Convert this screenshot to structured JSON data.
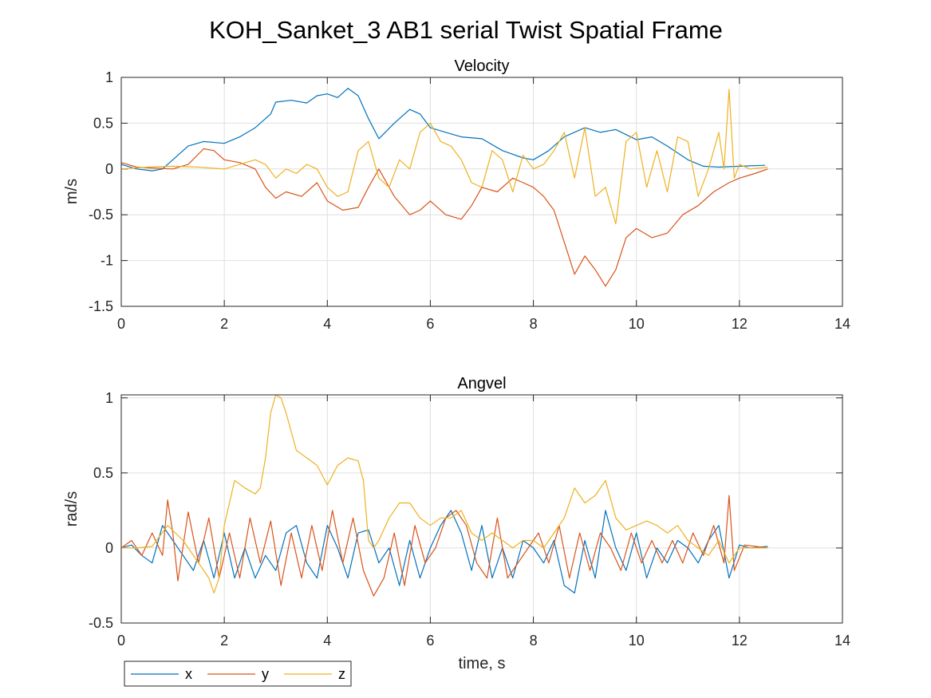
{
  "figure": {
    "title": "KOH_Sanket_3 AB1 serial Twist Spatial Frame"
  },
  "legend": {
    "placement": "bottom-left",
    "entries": [
      "x",
      "y",
      "z"
    ]
  },
  "chart_data": [
    {
      "type": "line",
      "title": "Velocity",
      "xlabel": "",
      "ylabel": "m/s",
      "xlim": [
        0,
        14
      ],
      "ylim": [
        -1.5,
        1
      ],
      "xticks": [
        "0",
        "2",
        "4",
        "6",
        "8",
        "10",
        "12",
        "14"
      ],
      "yticks": [
        "-1.5",
        "-1",
        "-0.5",
        "0",
        "0.5",
        "1"
      ],
      "grid": true,
      "series": [
        {
          "name": "x",
          "color": "#0072BD",
          "x": [
            0,
            0.3,
            0.6,
            0.8,
            1.0,
            1.3,
            1.6,
            2.0,
            2.3,
            2.6,
            2.9,
            3.0,
            3.3,
            3.6,
            3.8,
            4.0,
            4.2,
            4.4,
            4.6,
            4.8,
            5.0,
            5.3,
            5.6,
            5.8,
            6.0,
            6.3,
            6.6,
            7.0,
            7.4,
            7.8,
            8.0,
            8.3,
            8.6,
            9.0,
            9.3,
            9.6,
            10.0,
            10.3,
            10.6,
            11.0,
            11.3,
            11.6,
            12.0,
            12.5
          ],
          "y": [
            0.05,
            0.0,
            -0.02,
            0.0,
            0.1,
            0.25,
            0.3,
            0.28,
            0.35,
            0.45,
            0.6,
            0.73,
            0.75,
            0.72,
            0.8,
            0.82,
            0.78,
            0.88,
            0.8,
            0.55,
            0.33,
            0.5,
            0.65,
            0.6,
            0.45,
            0.4,
            0.35,
            0.33,
            0.2,
            0.12,
            0.1,
            0.2,
            0.35,
            0.45,
            0.4,
            0.43,
            0.32,
            0.35,
            0.25,
            0.1,
            0.03,
            0.02,
            0.03,
            0.04
          ]
        },
        {
          "name": "y",
          "color": "#D95319",
          "x": [
            0,
            0.3,
            0.6,
            1.0,
            1.3,
            1.6,
            1.8,
            2.0,
            2.3,
            2.6,
            2.8,
            3.0,
            3.2,
            3.5,
            3.8,
            4.0,
            4.3,
            4.6,
            4.8,
            5.0,
            5.3,
            5.6,
            5.8,
            6.0,
            6.3,
            6.6,
            6.8,
            7.0,
            7.3,
            7.6,
            7.8,
            8.0,
            8.2,
            8.4,
            8.6,
            8.8,
            9.0,
            9.2,
            9.4,
            9.6,
            9.8,
            10.0,
            10.3,
            10.6,
            10.9,
            11.2,
            11.5,
            11.8,
            12.0,
            12.3,
            12.55
          ],
          "y": [
            0.07,
            0.02,
            0.01,
            0.0,
            0.05,
            0.22,
            0.2,
            0.1,
            0.07,
            0.0,
            -0.2,
            -0.32,
            -0.25,
            -0.3,
            -0.15,
            -0.35,
            -0.45,
            -0.42,
            -0.2,
            0.0,
            -0.3,
            -0.5,
            -0.45,
            -0.35,
            -0.5,
            -0.55,
            -0.4,
            -0.2,
            -0.25,
            -0.1,
            -0.15,
            -0.2,
            -0.3,
            -0.45,
            -0.8,
            -1.15,
            -0.95,
            -1.1,
            -1.28,
            -1.1,
            -0.75,
            -0.65,
            -0.75,
            -0.7,
            -0.5,
            -0.4,
            -0.25,
            -0.15,
            -0.1,
            -0.05,
            0.0
          ]
        },
        {
          "name": "z",
          "color": "#EDB120",
          "x": [
            0,
            0.5,
            1.0,
            1.5,
            2.0,
            2.3,
            2.6,
            2.8,
            3.0,
            3.2,
            3.4,
            3.6,
            3.8,
            4.0,
            4.2,
            4.4,
            4.6,
            4.8,
            5.0,
            5.2,
            5.4,
            5.6,
            5.8,
            6.0,
            6.2,
            6.4,
            6.6,
            6.8,
            7.0,
            7.2,
            7.4,
            7.6,
            7.8,
            8.0,
            8.2,
            8.4,
            8.6,
            8.8,
            9.0,
            9.2,
            9.4,
            9.6,
            9.8,
            10.0,
            10.2,
            10.4,
            10.6,
            10.8,
            11.0,
            11.2,
            11.4,
            11.6,
            11.7,
            11.8,
            11.9,
            12.0,
            12.2,
            12.55
          ],
          "y": [
            0.0,
            0.02,
            0.03,
            0.02,
            0.0,
            0.05,
            0.1,
            0.05,
            -0.1,
            0.0,
            -0.05,
            0.05,
            0.0,
            -0.2,
            -0.3,
            -0.25,
            0.2,
            0.3,
            -0.1,
            -0.2,
            0.1,
            0.0,
            0.4,
            0.5,
            0.3,
            0.25,
            0.1,
            -0.15,
            -0.2,
            0.2,
            0.1,
            -0.25,
            0.15,
            0.0,
            0.05,
            0.2,
            0.4,
            -0.1,
            0.45,
            -0.3,
            -0.2,
            -0.6,
            0.3,
            0.4,
            -0.2,
            0.2,
            -0.25,
            0.35,
            0.3,
            -0.3,
            0.0,
            0.4,
            0.0,
            0.87,
            -0.1,
            0.05,
            0.0,
            0.02
          ]
        }
      ]
    },
    {
      "type": "line",
      "title": "Angvel",
      "xlabel": "time, s",
      "ylabel": "rad/s",
      "xlim": [
        0,
        14
      ],
      "ylim": [
        -0.5,
        1.02
      ],
      "xticks": [
        "0",
        "2",
        "4",
        "6",
        "8",
        "10",
        "12",
        "14"
      ],
      "yticks": [
        "-0.5",
        "0",
        "0.5",
        "1"
      ],
      "grid": true,
      "series": [
        {
          "name": "x",
          "color": "#0072BD",
          "x": [
            0,
            0.2,
            0.4,
            0.6,
            0.8,
            1.0,
            1.2,
            1.4,
            1.6,
            1.8,
            2.0,
            2.2,
            2.4,
            2.6,
            2.8,
            3.0,
            3.2,
            3.4,
            3.6,
            3.8,
            4.0,
            4.2,
            4.4,
            4.6,
            4.8,
            5.0,
            5.2,
            5.4,
            5.6,
            5.8,
            6.0,
            6.2,
            6.4,
            6.6,
            6.8,
            7.0,
            7.2,
            7.4,
            7.6,
            7.8,
            8.0,
            8.2,
            8.4,
            8.6,
            8.8,
            9.0,
            9.2,
            9.4,
            9.6,
            9.8,
            10.0,
            10.2,
            10.4,
            10.6,
            10.8,
            11.0,
            11.2,
            11.4,
            11.6,
            11.8,
            12.0,
            12.2,
            12.55
          ],
          "y": [
            0.0,
            0.02,
            -0.05,
            -0.1,
            0.15,
            0.05,
            -0.05,
            -0.15,
            0.05,
            -0.2,
            0.1,
            -0.2,
            0.0,
            -0.2,
            -0.05,
            -0.15,
            0.1,
            0.15,
            -0.1,
            -0.2,
            0.15,
            0.0,
            -0.2,
            0.1,
            0.12,
            -0.1,
            0.0,
            -0.25,
            0.05,
            -0.2,
            0.0,
            0.15,
            0.25,
            0.1,
            -0.15,
            0.15,
            -0.2,
            0.0,
            -0.2,
            0.05,
            0.0,
            -0.1,
            0.05,
            -0.25,
            -0.3,
            0.05,
            -0.2,
            0.25,
            0.0,
            -0.15,
            0.1,
            -0.2,
            0.0,
            -0.1,
            0.05,
            0.0,
            -0.1,
            0.05,
            0.15,
            -0.2,
            0.02,
            0.0,
            0.01
          ]
        },
        {
          "name": "y",
          "color": "#D95319",
          "x": [
            0,
            0.2,
            0.4,
            0.6,
            0.8,
            0.9,
            1.0,
            1.1,
            1.3,
            1.5,
            1.7,
            1.9,
            2.1,
            2.3,
            2.5,
            2.7,
            2.9,
            3.1,
            3.3,
            3.5,
            3.7,
            3.9,
            4.1,
            4.3,
            4.5,
            4.7,
            4.9,
            5.1,
            5.3,
            5.5,
            5.7,
            5.9,
            6.1,
            6.3,
            6.5,
            6.7,
            6.9,
            7.1,
            7.3,
            7.5,
            7.7,
            7.9,
            8.1,
            8.3,
            8.5,
            8.7,
            8.9,
            9.1,
            9.3,
            9.5,
            9.7,
            9.9,
            10.1,
            10.3,
            10.5,
            10.7,
            10.9,
            11.1,
            11.3,
            11.5,
            11.7,
            11.8,
            11.9,
            12.1,
            12.55
          ],
          "y": [
            0.0,
            0.05,
            -0.05,
            0.1,
            -0.05,
            0.32,
            0.1,
            -0.22,
            0.24,
            -0.1,
            0.2,
            -0.2,
            0.1,
            -0.2,
            0.2,
            -0.1,
            0.18,
            -0.25,
            0.1,
            -0.2,
            0.15,
            -0.15,
            0.25,
            -0.1,
            0.2,
            -0.15,
            -0.32,
            -0.2,
            0.1,
            -0.25,
            0.15,
            -0.1,
            0.0,
            0.2,
            0.25,
            0.15,
            -0.1,
            -0.2,
            0.2,
            -0.2,
            -0.1,
            0.0,
            0.1,
            -0.1,
            0.15,
            -0.2,
            0.1,
            -0.15,
            0.1,
            0.0,
            -0.15,
            0.1,
            -0.1,
            0.05,
            -0.1,
            0.05,
            -0.1,
            0.1,
            -0.05,
            0.15,
            -0.1,
            0.35,
            -0.15,
            0.02,
            0.0
          ]
        },
        {
          "name": "z",
          "color": "#EDB120",
          "x": [
            0,
            0.3,
            0.6,
            0.9,
            1.2,
            1.5,
            1.7,
            1.8,
            1.9,
            2.0,
            2.2,
            2.4,
            2.6,
            2.7,
            2.8,
            2.9,
            3.0,
            3.1,
            3.2,
            3.4,
            3.6,
            3.8,
            4.0,
            4.2,
            4.4,
            4.6,
            4.7,
            4.8,
            4.9,
            5.0,
            5.2,
            5.4,
            5.6,
            5.8,
            6.0,
            6.2,
            6.4,
            6.6,
            6.8,
            7.0,
            7.2,
            7.4,
            7.6,
            7.8,
            8.0,
            8.2,
            8.4,
            8.6,
            8.8,
            9.0,
            9.2,
            9.4,
            9.6,
            9.8,
            10.0,
            10.2,
            10.4,
            10.6,
            10.8,
            11.0,
            11.2,
            11.4,
            11.6,
            11.8,
            12.0,
            12.55
          ],
          "y": [
            0.0,
            0.0,
            0.01,
            0.15,
            0.05,
            -0.1,
            -0.2,
            -0.3,
            -0.2,
            0.15,
            0.45,
            0.4,
            0.36,
            0.4,
            0.6,
            0.9,
            1.02,
            1.0,
            0.9,
            0.65,
            0.6,
            0.55,
            0.42,
            0.55,
            0.6,
            0.58,
            0.45,
            0.05,
            0.0,
            0.05,
            0.2,
            0.3,
            0.3,
            0.2,
            0.15,
            0.2,
            0.2,
            0.25,
            0.1,
            0.05,
            0.1,
            0.05,
            0.0,
            0.05,
            0.05,
            0.0,
            0.1,
            0.2,
            0.4,
            0.3,
            0.35,
            0.45,
            0.2,
            0.12,
            0.15,
            0.18,
            0.15,
            0.1,
            0.15,
            0.05,
            0.0,
            -0.05,
            0.05,
            -0.1,
            0.0,
            0.0
          ]
        }
      ]
    }
  ]
}
